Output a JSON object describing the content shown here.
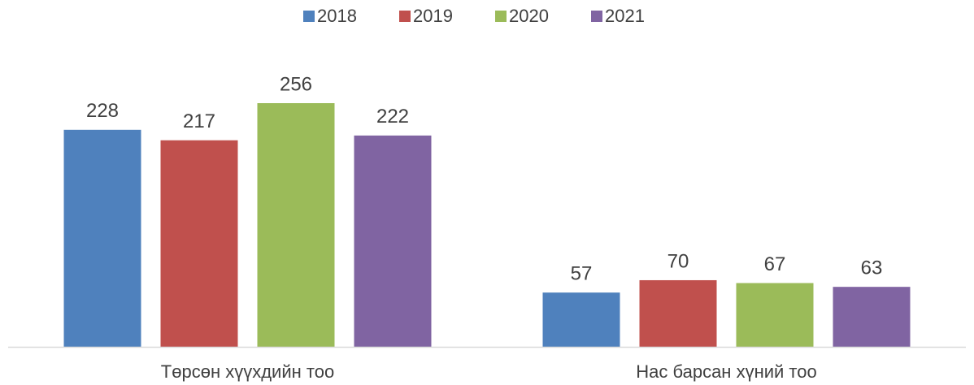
{
  "chart_data": {
    "type": "bar",
    "categories": [
      "Төрсөн хүүхдийн тоо",
      "Нас барсан хүний тоо"
    ],
    "series": [
      {
        "name": "2018",
        "color": "#4f81bd",
        "values": [
          228,
          57
        ]
      },
      {
        "name": "2019",
        "color": "#c0504d",
        "values": [
          217,
          70
        ]
      },
      {
        "name": "2020",
        "color": "#9bbb59",
        "values": [
          256,
          67
        ]
      },
      {
        "name": "2021",
        "color": "#8064a2",
        "values": [
          222,
          63
        ]
      }
    ],
    "legend": "top"
  }
}
